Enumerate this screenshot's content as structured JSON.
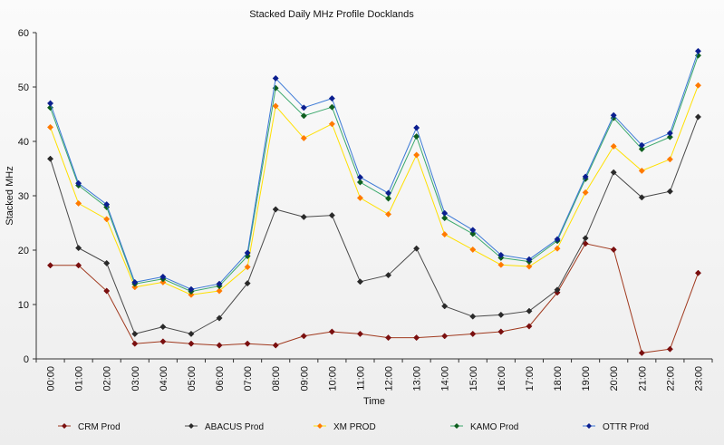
{
  "chart_data": {
    "type": "line",
    "title": "Stacked Daily MHz Profile Docklands",
    "xlabel": "Time",
    "ylabel": "Stacked MHz",
    "ylim": [
      0,
      60
    ],
    "yticks": [
      0,
      10,
      20,
      30,
      40,
      50,
      60
    ],
    "grid": false,
    "legend_position": "bottom",
    "categories": [
      "00:00",
      "01:00",
      "02:00",
      "03:00",
      "04:00",
      "05:00",
      "06:00",
      "07:00",
      "08:00",
      "09:00",
      "10:00",
      "11:00",
      "12:00",
      "13:00",
      "14:00",
      "15:00",
      "16:00",
      "17:00",
      "18:00",
      "19:00",
      "20:00",
      "21:00",
      "22:00",
      "23:00"
    ],
    "series": [
      {
        "name": "CRM Prod",
        "color": "#a0391e",
        "marker_color": "#7a0f0f",
        "values": [
          17.2,
          17.2,
          12.5,
          2.8,
          3.2,
          2.8,
          2.5,
          2.8,
          2.5,
          4.2,
          5.0,
          4.6,
          3.9,
          3.9,
          4.2,
          4.6,
          5.0,
          6.0,
          12.2,
          21.2,
          20.1,
          1.1,
          1.8,
          15.8
        ]
      },
      {
        "name": "ABACUS Prod",
        "color": "#4a4a4a",
        "marker_color": "#2a2a2a",
        "values": [
          36.8,
          20.4,
          17.6,
          4.6,
          5.9,
          4.6,
          7.5,
          13.9,
          27.5,
          26.1,
          26.4,
          14.2,
          15.4,
          20.3,
          9.7,
          7.8,
          8.1,
          8.8,
          12.7,
          22.2,
          34.3,
          29.7,
          30.8,
          44.5
        ]
      },
      {
        "name": "XM PROD",
        "color": "#ffe000",
        "marker_color": "#ff7a00",
        "values": [
          42.6,
          28.6,
          25.7,
          13.2,
          14.1,
          11.8,
          12.5,
          16.9,
          46.5,
          40.6,
          43.2,
          29.6,
          26.6,
          37.5,
          22.9,
          20.1,
          17.3,
          17.0,
          20.3,
          30.6,
          39.1,
          34.6,
          36.7,
          50.3
        ]
      },
      {
        "name": "KAMO Prod",
        "color": "#3aa86b",
        "marker_color": "#0e5e1e",
        "values": [
          46.2,
          31.9,
          27.9,
          13.8,
          14.7,
          12.4,
          13.4,
          18.9,
          49.8,
          44.7,
          46.3,
          32.5,
          29.5,
          40.9,
          25.9,
          23.0,
          18.6,
          17.9,
          21.7,
          33.1,
          44.3,
          38.6,
          40.8,
          55.8
        ]
      },
      {
        "name": "OTTR Prod",
        "color": "#3b79d6",
        "marker_color": "#0b1e8f",
        "values": [
          47.0,
          32.3,
          28.4,
          14.1,
          15.1,
          12.8,
          13.8,
          19.5,
          51.6,
          46.2,
          47.9,
          33.4,
          30.5,
          42.5,
          26.8,
          23.7,
          19.1,
          18.3,
          22.0,
          33.5,
          44.8,
          39.3,
          41.5,
          56.6
        ]
      }
    ]
  }
}
